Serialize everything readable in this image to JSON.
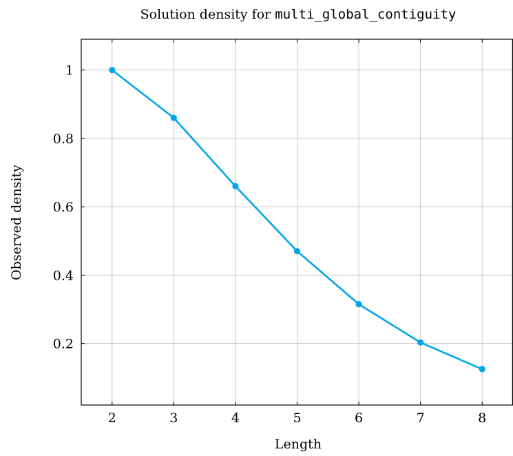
{
  "chart_data": {
    "type": "line",
    "title_prefix": "Solution density for ",
    "title_code": "multi_global_contiguity",
    "xlabel": "Length",
    "ylabel": "Observed density",
    "xlim": [
      1.5,
      8.5
    ],
    "ylim": [
      0.02,
      1.09
    ],
    "xticks": [
      2,
      3,
      4,
      5,
      6,
      7,
      8
    ],
    "yticks": [
      0.2,
      0.4,
      0.6,
      0.8,
      1
    ],
    "grid": true,
    "series": [
      {
        "color": "#00a6e8",
        "x": [
          2,
          3,
          4,
          5,
          6,
          7,
          8
        ],
        "y": [
          1.0,
          0.86,
          0.66,
          0.47,
          0.315,
          0.203,
          0.125
        ]
      }
    ]
  }
}
